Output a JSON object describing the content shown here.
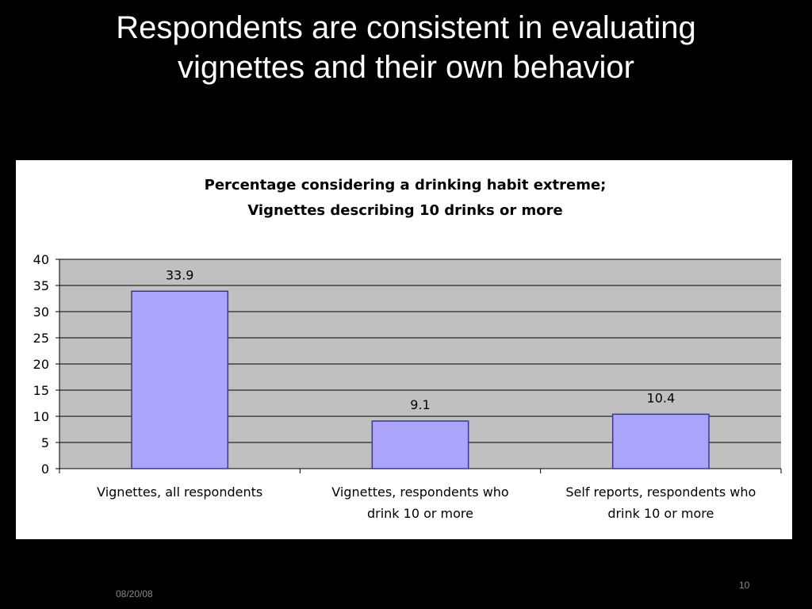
{
  "slide": {
    "title_line1": "Respondents are consistent in evaluating",
    "title_line2": "vignettes and their own behavior",
    "footer_date": "08/20/08",
    "page_number": "10"
  },
  "chart_data": {
    "type": "bar",
    "title_lines": [
      "Percentage considering a drinking habit extreme;",
      "Vignettes describing 10 drinks or more"
    ],
    "categories": [
      [
        "Vignettes, all respondents"
      ],
      [
        "Vignettes, respondents who",
        "drink 10 or more"
      ],
      [
        "Self reports, respondents who",
        "drink 10 or more"
      ]
    ],
    "values": [
      33.9,
      9.1,
      10.4
    ],
    "data_labels": [
      "33.9",
      "9.1",
      "10.4"
    ],
    "ylim": [
      0,
      40
    ],
    "yticks": [
      0,
      5,
      10,
      15,
      20,
      25,
      30,
      35,
      40
    ],
    "grid": true,
    "legend": "none",
    "colors": {
      "bar_fill": "#aaa4fa",
      "bar_stroke": "#3a3a8a",
      "plot_background": "#c0c0c0",
      "gridline": "#000000"
    }
  }
}
